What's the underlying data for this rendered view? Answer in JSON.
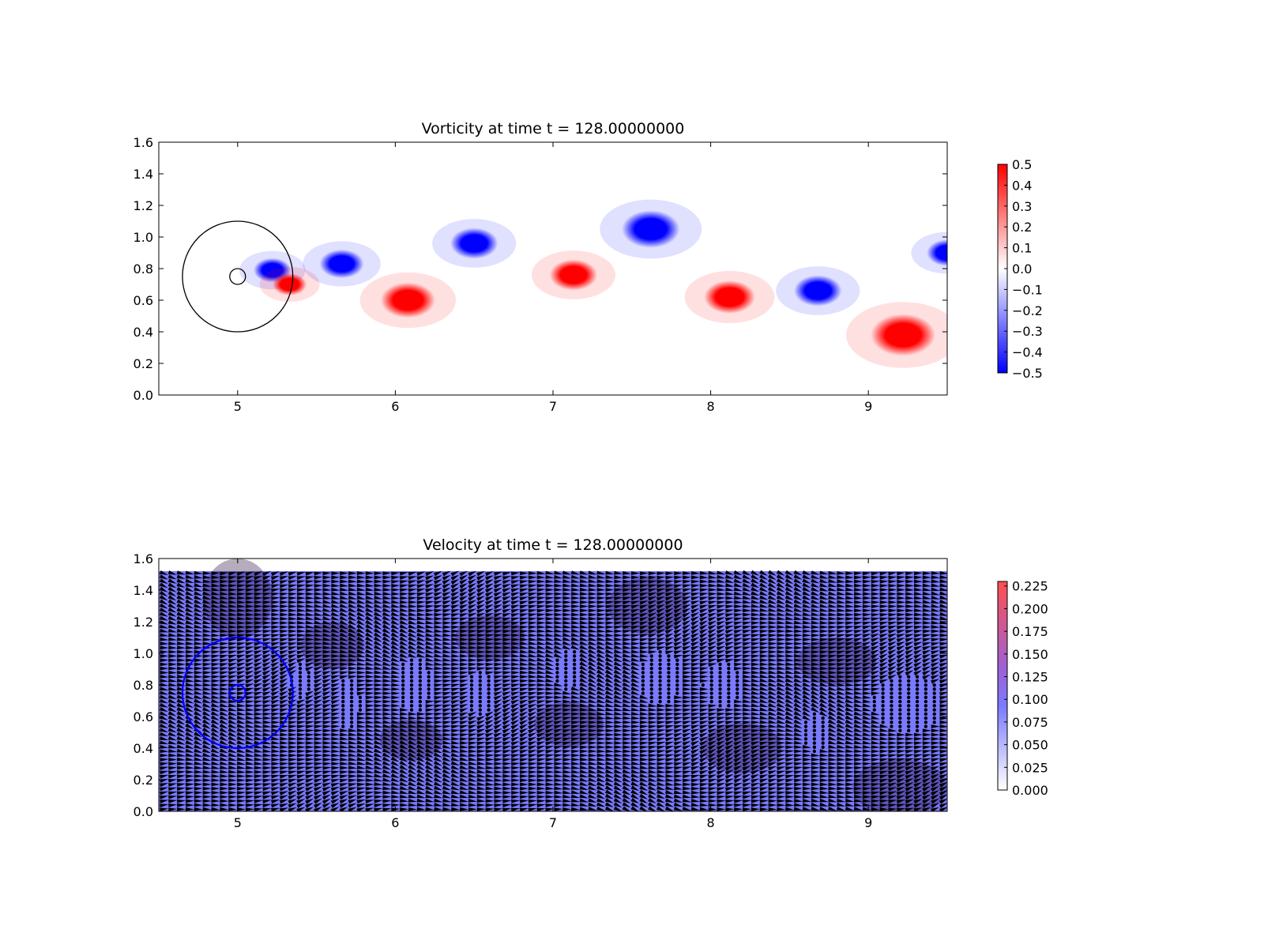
{
  "chart_data": [
    {
      "type": "heatmap",
      "title": "Vorticity at time t =   128.00000000",
      "xlabel": "",
      "ylabel": "",
      "xlim": [
        4.5,
        9.5
      ],
      "ylim": [
        0.0,
        1.6
      ],
      "xticks": [
        "5",
        "6",
        "7",
        "8",
        "9"
      ],
      "yticks": [
        "0.0",
        "0.2",
        "0.4",
        "0.6",
        "0.8",
        "1.0",
        "1.2",
        "1.4",
        "1.6"
      ],
      "colormap": "bwr",
      "colors": {
        "negative": "#0000ff",
        "zero": "#ffffff",
        "positive": "#ff0000"
      },
      "colorbar": {
        "range": [
          -0.5,
          0.5
        ],
        "ticks": [
          "0.5",
          "0.4",
          "0.3",
          "0.2",
          "0.1",
          "0.0",
          "−0.1",
          "−0.2",
          "−0.3",
          "−0.4",
          "−0.5"
        ]
      },
      "vortices": [
        {
          "x": 5.22,
          "y": 0.79,
          "radius": 0.11,
          "value": -0.5
        },
        {
          "x": 5.33,
          "y": 0.7,
          "radius": 0.1,
          "value": 0.5
        },
        {
          "x": 5.66,
          "y": 0.83,
          "radius": 0.13,
          "value": -0.5
        },
        {
          "x": 6.08,
          "y": 0.6,
          "radius": 0.16,
          "value": 0.5
        },
        {
          "x": 6.5,
          "y": 0.96,
          "radius": 0.14,
          "value": -0.5
        },
        {
          "x": 7.13,
          "y": 0.76,
          "radius": 0.14,
          "value": 0.5
        },
        {
          "x": 7.62,
          "y": 1.05,
          "radius": 0.17,
          "value": -0.5
        },
        {
          "x": 8.12,
          "y": 0.62,
          "radius": 0.15,
          "value": 0.5
        },
        {
          "x": 8.68,
          "y": 0.66,
          "radius": 0.14,
          "value": -0.5
        },
        {
          "x": 9.22,
          "y": 0.38,
          "radius": 0.19,
          "value": 0.5
        },
        {
          "x": 9.5,
          "y": 0.9,
          "radius": 0.12,
          "value": -0.5
        }
      ],
      "circles": [
        {
          "x": 5.0,
          "y": 0.75,
          "radius": 0.35,
          "color": "#000000"
        },
        {
          "x": 5.0,
          "y": 0.75,
          "radius": 0.05,
          "color": "#000000"
        }
      ]
    },
    {
      "type": "quiver",
      "title": "Velocity at time t =   128.00000000",
      "xlabel": "",
      "ylabel": "",
      "xlim": [
        4.5,
        9.5
      ],
      "ylim": [
        0.0,
        1.6
      ],
      "xticks": [
        "5",
        "6",
        "7",
        "8",
        "9"
      ],
      "yticks": [
        "0.0",
        "0.2",
        "0.4",
        "0.6",
        "0.8",
        "1.0",
        "1.2",
        "1.4",
        "1.6"
      ],
      "field_top": 1.52,
      "colormap": "white-blue-red",
      "colors": {
        "low": "#ffffff",
        "mid": "#7a7aff",
        "high": "#ff5050",
        "arrow": "#000000"
      },
      "colorbar": {
        "range": [
          0.0,
          0.23
        ],
        "ticks": [
          "0.225",
          "0.200",
          "0.175",
          "0.150",
          "0.125",
          "0.100",
          "0.075",
          "0.050",
          "0.025",
          "0.000"
        ]
      },
      "slow_regions": [
        {
          "x": 5.4,
          "y": 0.82,
          "rx": 0.06,
          "ry": 0.12
        },
        {
          "x": 5.7,
          "y": 0.68,
          "rx": 0.08,
          "ry": 0.16
        },
        {
          "x": 6.12,
          "y": 0.8,
          "rx": 0.11,
          "ry": 0.18
        },
        {
          "x": 6.54,
          "y": 0.74,
          "rx": 0.1,
          "ry": 0.14
        },
        {
          "x": 7.1,
          "y": 0.9,
          "rx": 0.09,
          "ry": 0.13
        },
        {
          "x": 7.68,
          "y": 0.84,
          "rx": 0.15,
          "ry": 0.17
        },
        {
          "x": 8.08,
          "y": 0.8,
          "rx": 0.13,
          "ry": 0.14
        },
        {
          "x": 8.67,
          "y": 0.5,
          "rx": 0.08,
          "ry": 0.13
        },
        {
          "x": 9.25,
          "y": 0.68,
          "rx": 0.22,
          "ry": 0.19
        }
      ],
      "circles": [
        {
          "x": 5.0,
          "y": 0.75,
          "radius": 0.35,
          "color": "#0000ff"
        },
        {
          "x": 5.0,
          "y": 0.75,
          "radius": 0.05,
          "color": "#0000ff"
        }
      ]
    }
  ]
}
